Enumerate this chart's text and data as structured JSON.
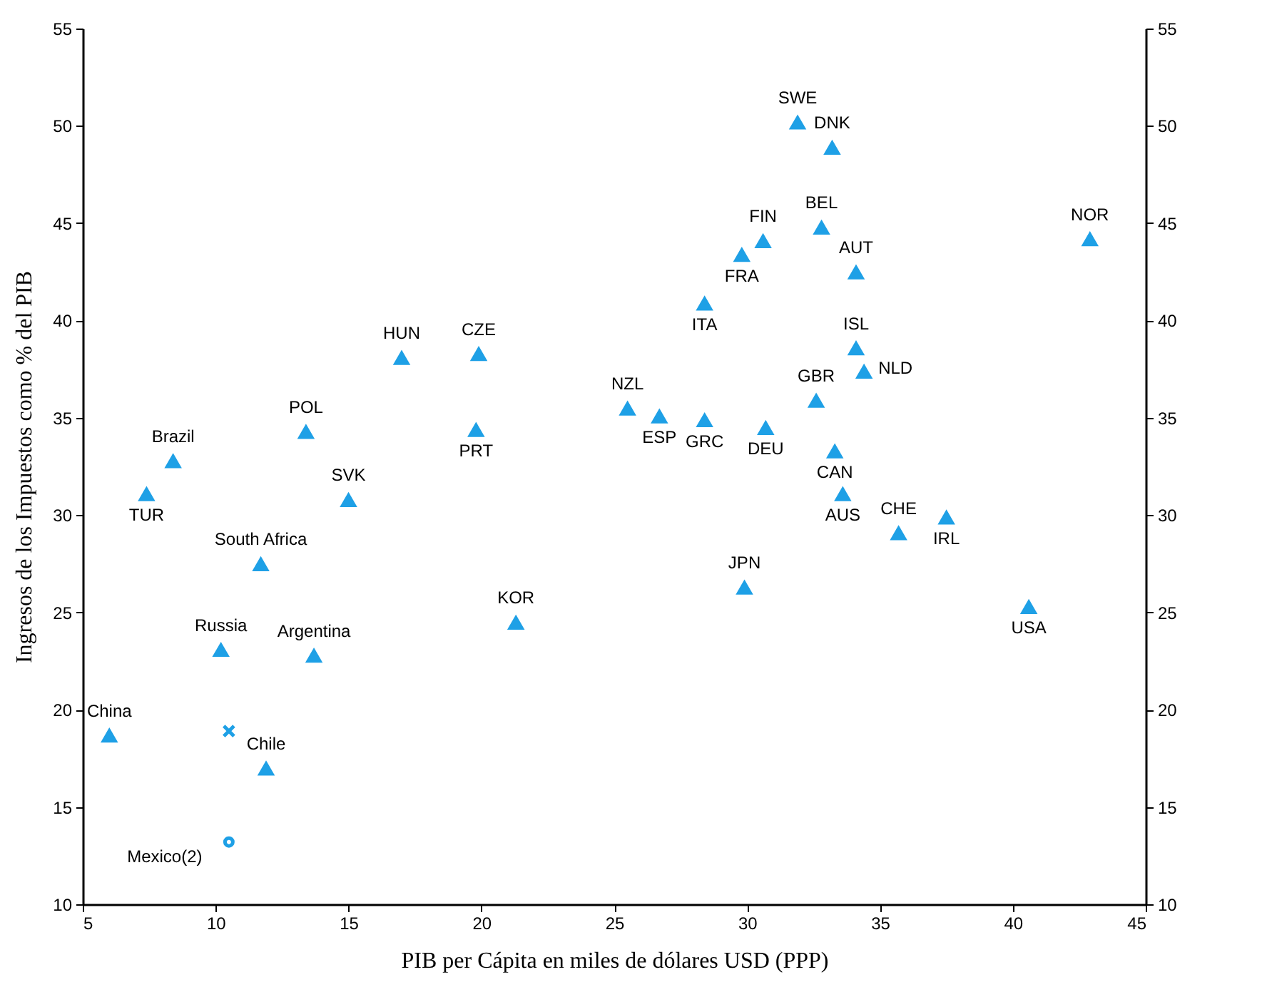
{
  "chart_data": {
    "type": "scatter",
    "xlabel": "PIB per Cápita en miles de dólares USD (PPP)",
    "ylabel": "Ingresos de los Impuestos como % del PIB",
    "xlim": [
      5,
      45
    ],
    "xticks": [
      5,
      10,
      15,
      20,
      25,
      30,
      35,
      40,
      45
    ],
    "ylim": [
      10,
      55
    ],
    "yticks": [
      10,
      15,
      20,
      25,
      30,
      35,
      40,
      45,
      50,
      55
    ],
    "y2lim": [
      10,
      55
    ],
    "y2ticks": [
      10,
      15,
      20,
      25,
      30,
      35,
      40,
      45,
      50,
      55
    ],
    "grid": false,
    "series": [
      {
        "color": "#1ea0e6",
        "marker": "triangle",
        "x": [
          7.4,
          8.4,
          6.0,
          10.2,
          11.7,
          13.7,
          11.9,
          13.4,
          15.0,
          17.0,
          19.9,
          19.8,
          21.3,
          25.5,
          26.7,
          28.4,
          30.7,
          28.4,
          29.8,
          30.6,
          31.9,
          33.2,
          32.8,
          34.1,
          34.1,
          34.4,
          32.6,
          33.3,
          33.6,
          35.7,
          37.5,
          29.9,
          40.6,
          42.9
        ],
        "values": [
          31.1,
          32.8,
          18.7,
          23.1,
          27.5,
          22.8,
          17.0,
          34.3,
          30.8,
          38.1,
          38.3,
          34.4,
          24.5,
          35.5,
          35.1,
          34.9,
          34.5,
          40.9,
          43.4,
          44.1,
          50.2,
          48.9,
          44.8,
          42.5,
          38.6,
          37.4,
          35.9,
          33.3,
          31.1,
          29.1,
          29.9,
          26.3,
          25.3,
          44.2
        ]
      },
      {
        "color": "#1ea0e6",
        "marker": "cross",
        "x": [
          10.5
        ],
        "values": [
          18.9
        ]
      },
      {
        "color": "#1ea0e6",
        "marker": "circle",
        "x": [
          10.5
        ],
        "values": [
          13.2
        ]
      }
    ],
    "annotations": [
      {
        "text": "TUR",
        "x": 7.4,
        "y": 31.1
      },
      {
        "text": "Brazil",
        "x": 8.4,
        "y": 32.8
      },
      {
        "text": "China",
        "x": 6.0,
        "y": 18.7
      },
      {
        "text": "Russia",
        "x": 10.2,
        "y": 23.1
      },
      {
        "text": "South Africa",
        "x": 11.7,
        "y": 27.5
      },
      {
        "text": "Argentina",
        "x": 13.7,
        "y": 22.8
      },
      {
        "text": "Chile",
        "x": 11.9,
        "y": 17.0
      },
      {
        "text": "POL",
        "x": 13.4,
        "y": 34.3
      },
      {
        "text": "SVK",
        "x": 15.0,
        "y": 30.8
      },
      {
        "text": "HUN",
        "x": 17.0,
        "y": 38.1
      },
      {
        "text": "CZE",
        "x": 19.9,
        "y": 38.3
      },
      {
        "text": "PRT",
        "x": 19.8,
        "y": 34.4
      },
      {
        "text": "KOR",
        "x": 21.3,
        "y": 24.5
      },
      {
        "text": "NZL",
        "x": 25.5,
        "y": 35.5
      },
      {
        "text": "ESP",
        "x": 26.7,
        "y": 35.1
      },
      {
        "text": "GRC",
        "x": 28.4,
        "y": 34.9
      },
      {
        "text": "DEU",
        "x": 30.7,
        "y": 34.5
      },
      {
        "text": "ITA",
        "x": 28.4,
        "y": 40.9
      },
      {
        "text": "FRA",
        "x": 29.8,
        "y": 43.4
      },
      {
        "text": "FIN",
        "x": 30.6,
        "y": 44.1
      },
      {
        "text": "SWE",
        "x": 31.9,
        "y": 50.2
      },
      {
        "text": "DNK",
        "x": 33.2,
        "y": 48.9
      },
      {
        "text": "BEL",
        "x": 32.8,
        "y": 44.8
      },
      {
        "text": "AUT",
        "x": 34.1,
        "y": 42.5
      },
      {
        "text": "ISL",
        "x": 34.1,
        "y": 38.6
      },
      {
        "text": "NLD",
        "x": 34.4,
        "y": 37.4
      },
      {
        "text": "GBR",
        "x": 32.6,
        "y": 35.9
      },
      {
        "text": "CAN",
        "x": 33.3,
        "y": 33.3
      },
      {
        "text": "AUS",
        "x": 33.6,
        "y": 31.1
      },
      {
        "text": "CHE",
        "x": 35.7,
        "y": 29.1
      },
      {
        "text": "IRL",
        "x": 37.5,
        "y": 29.9
      },
      {
        "text": "JPN",
        "x": 29.9,
        "y": 26.3
      },
      {
        "text": "USA",
        "x": 40.6,
        "y": 25.3
      },
      {
        "text": "NOR",
        "x": 42.9,
        "y": 44.2
      },
      {
        "text": "Mexico(2)",
        "x": 10.5,
        "y": 13.2
      }
    ]
  }
}
